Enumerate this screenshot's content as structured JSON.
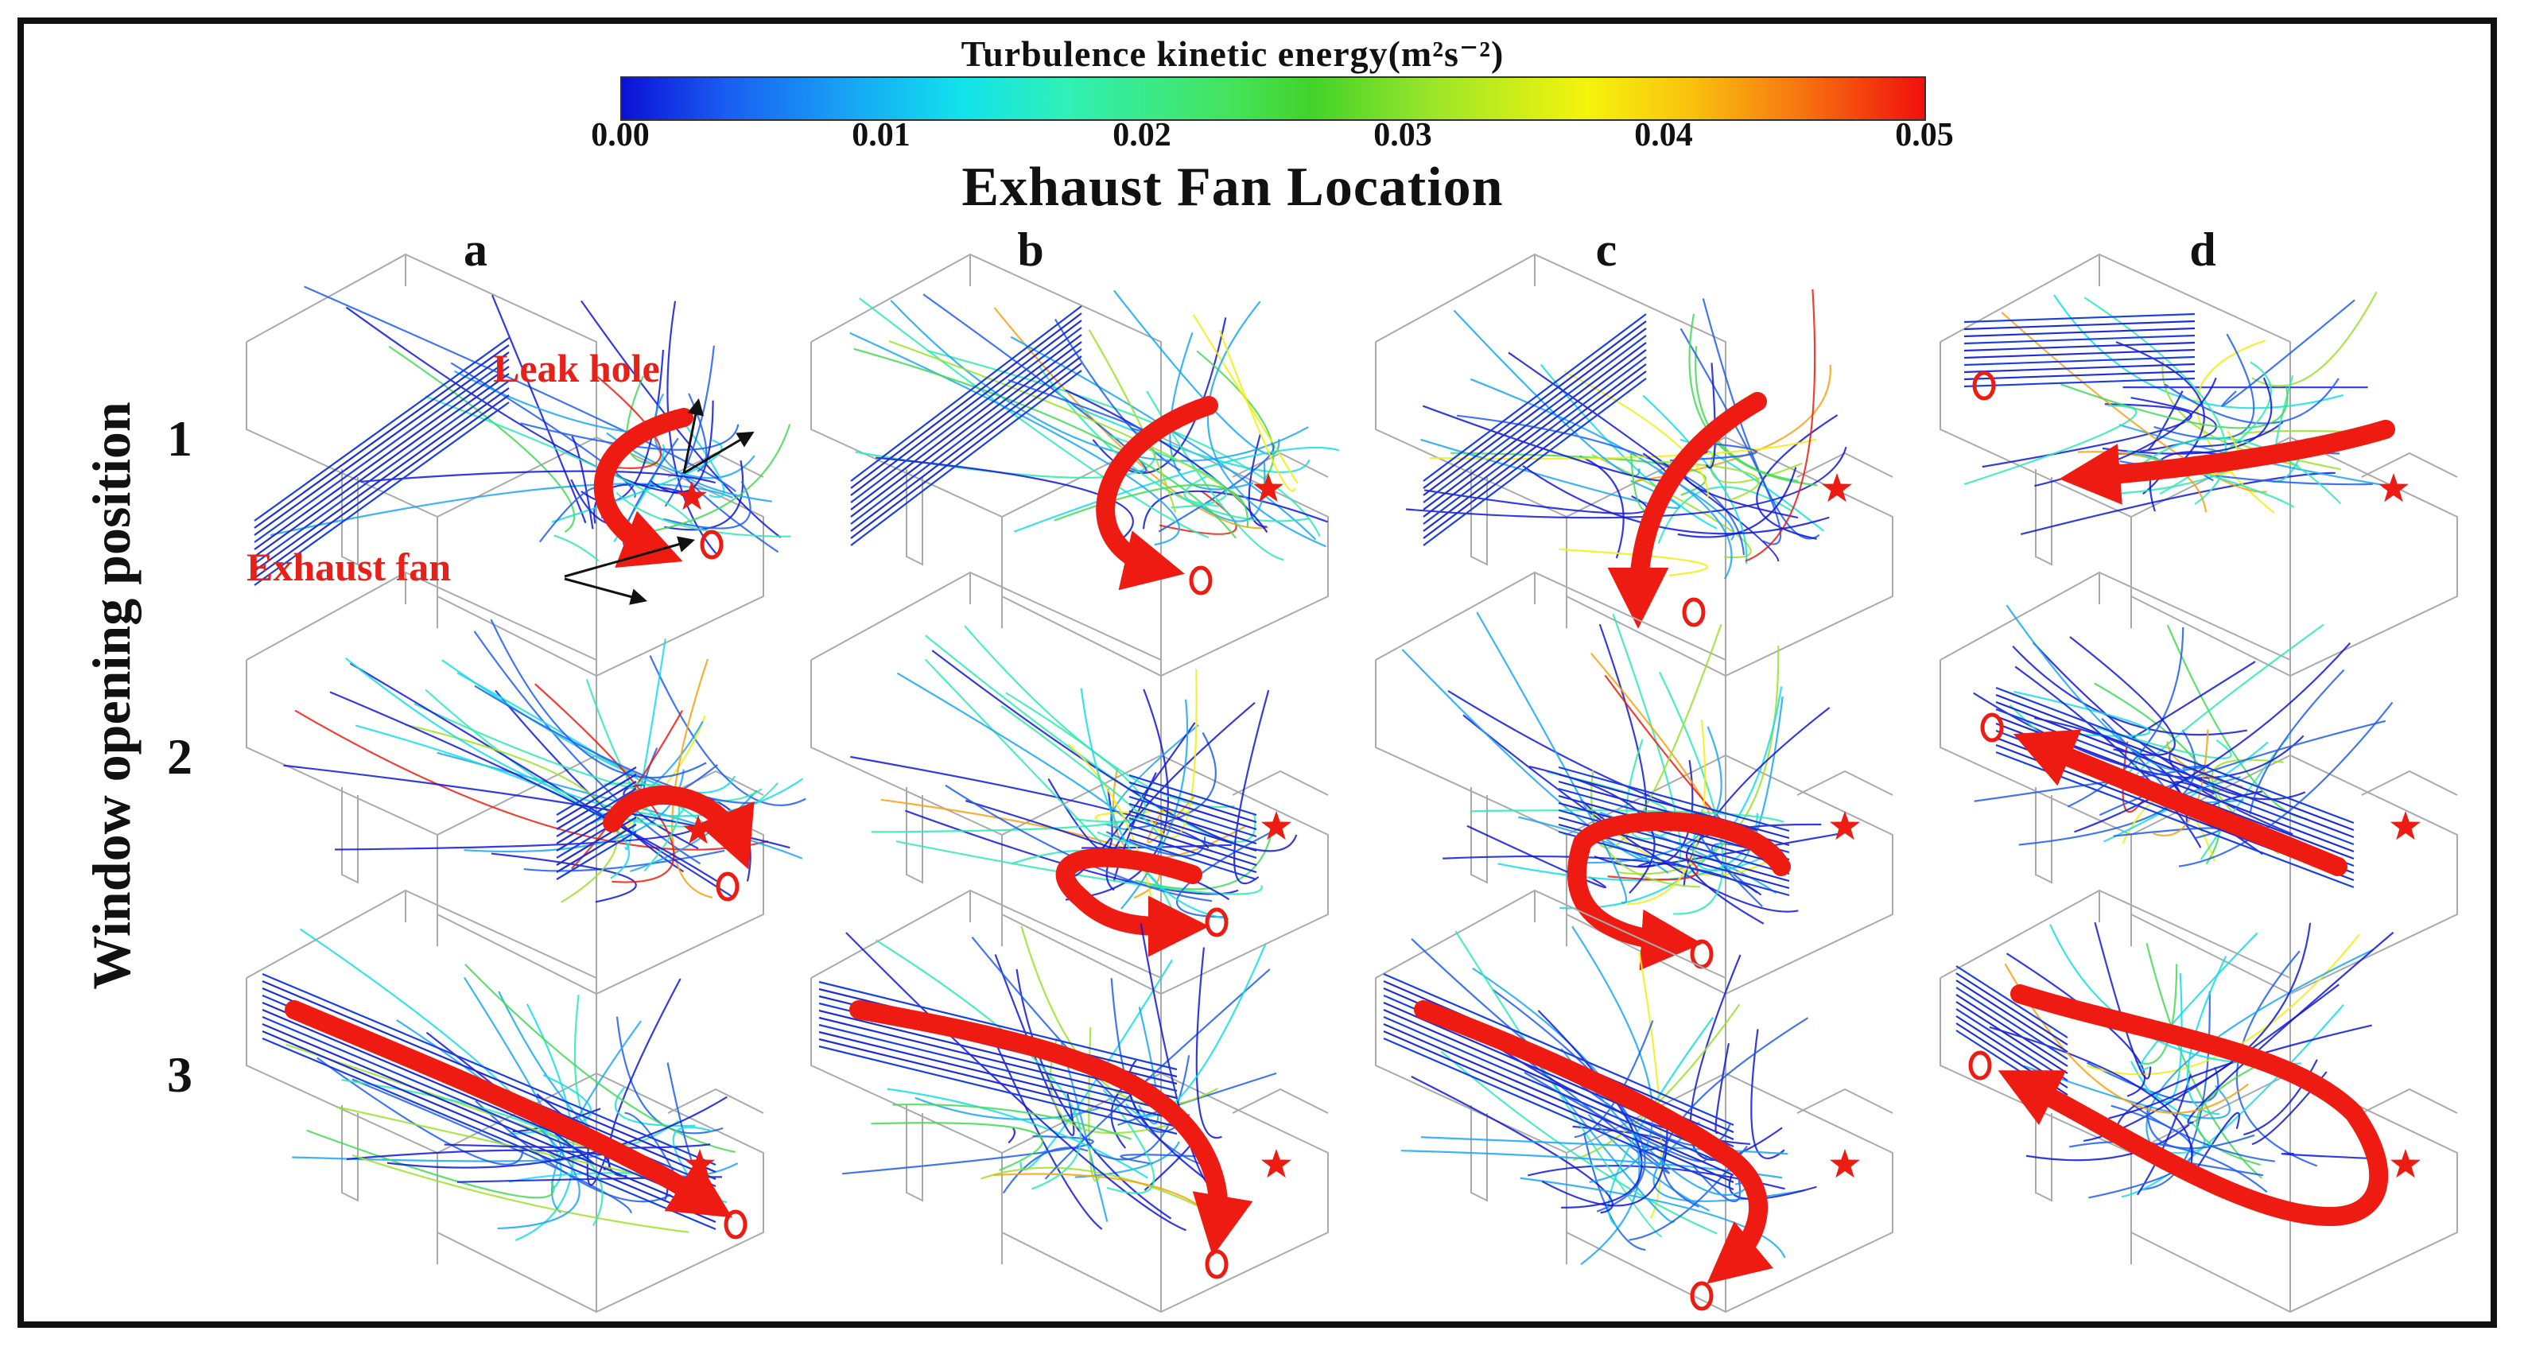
{
  "colorbar": {
    "title": "Turbulence kinetic energy(m²s⁻²)",
    "ticks": [
      "0.00",
      "0.01",
      "0.02",
      "0.03",
      "0.04",
      "0.05"
    ],
    "range": [
      0.0,
      0.05
    ]
  },
  "section_title": "Exhaust Fan Location",
  "columns": [
    "a",
    "b",
    "c",
    "d"
  ],
  "rows": [
    "1",
    "2",
    "3"
  ],
  "y_axis_label": "Window opening position",
  "annotations": {
    "leak_hole": "Leak hole",
    "exhaust_fan": "Exhaust fan"
  },
  "colors": {
    "arrow": "#ee1b12",
    "leak_star": "#ee1b12",
    "fan_ring": "#ee1b12",
    "room_lines": "#aaaaaa"
  }
}
